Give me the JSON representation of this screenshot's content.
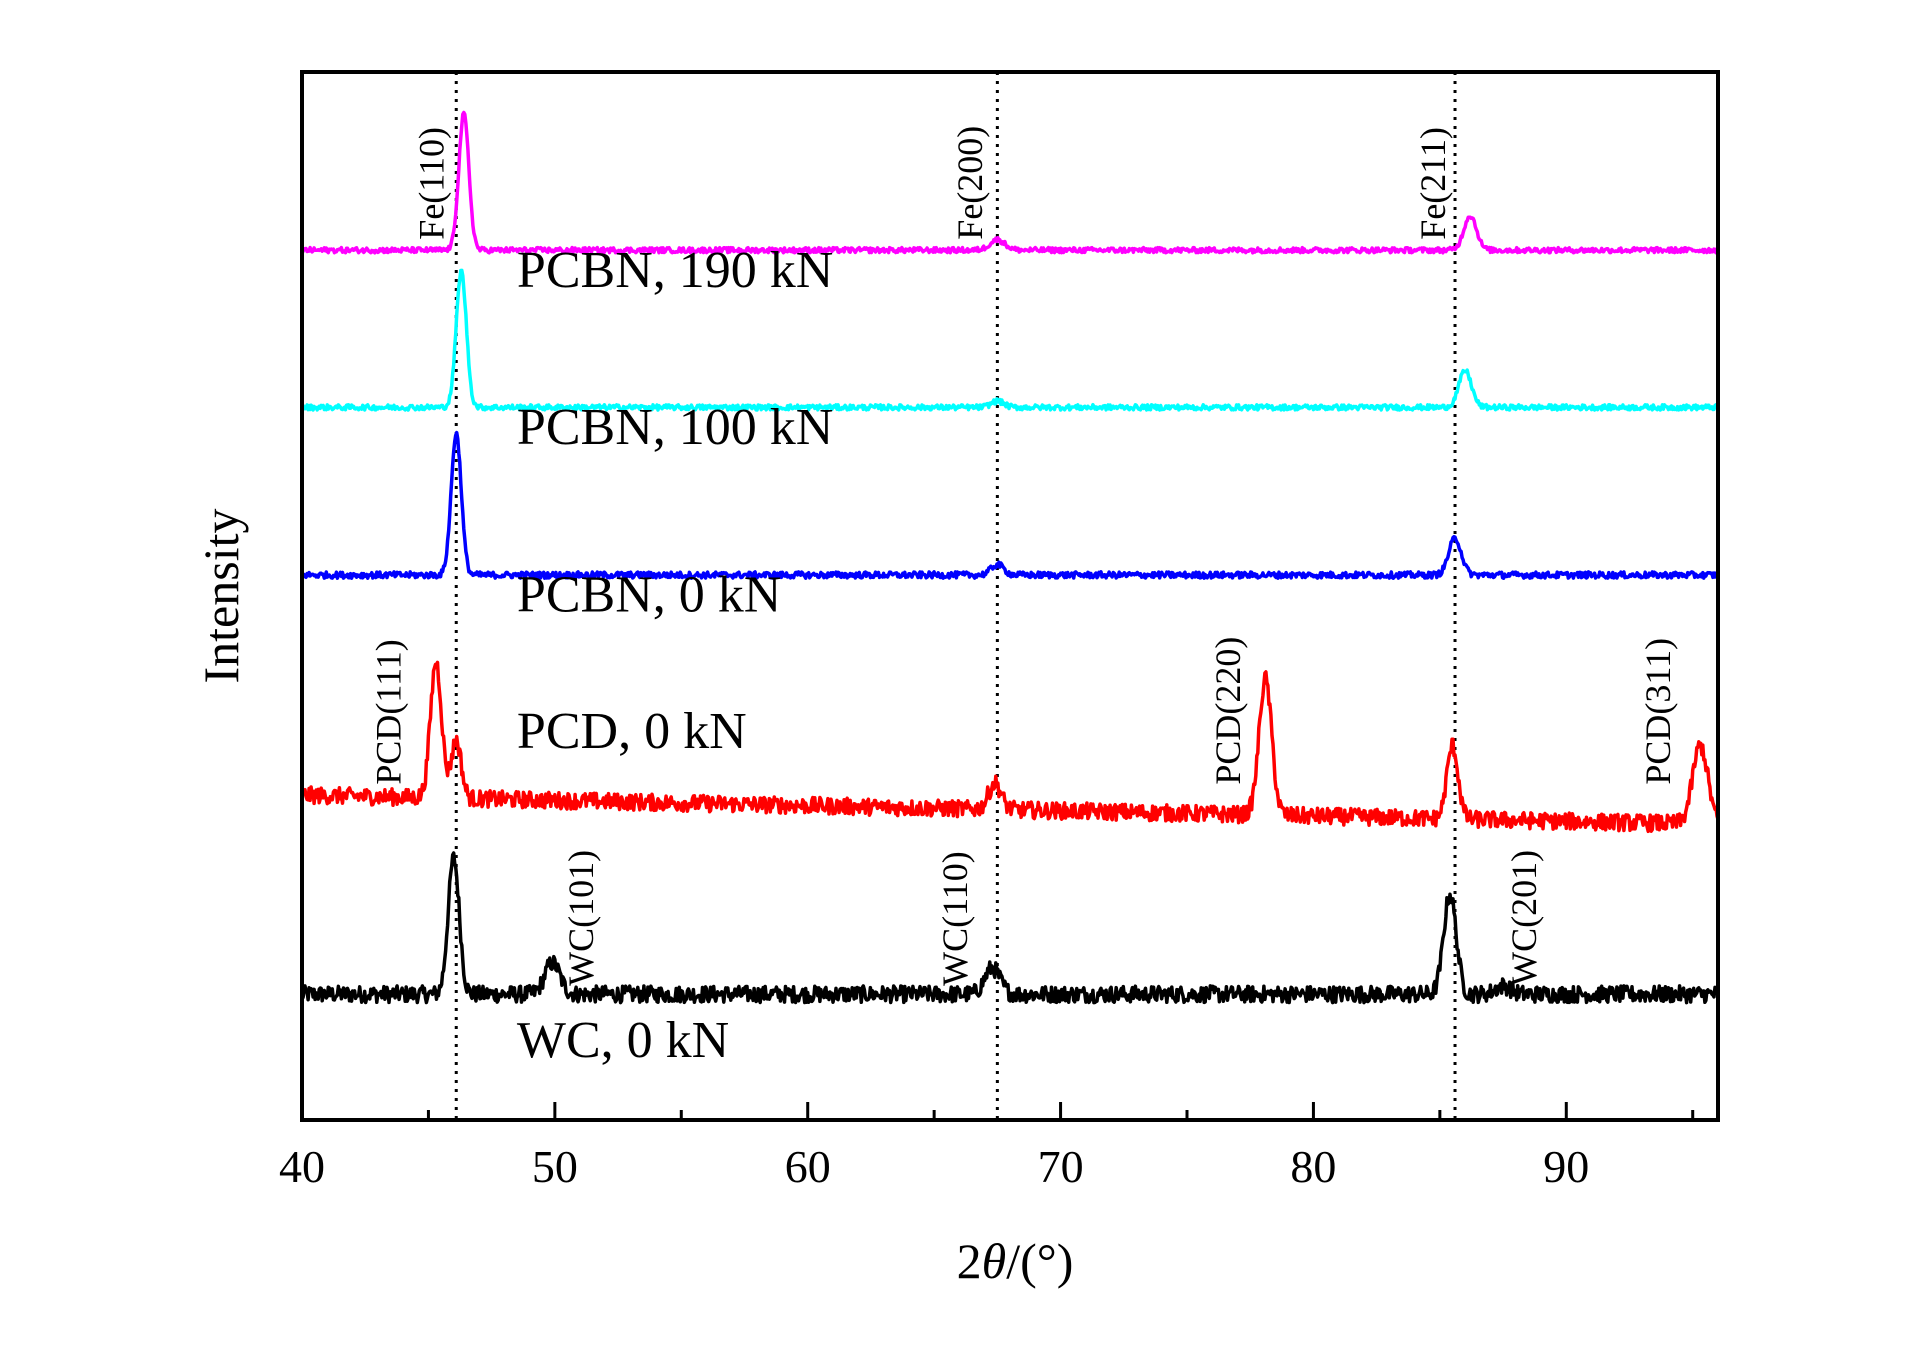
{
  "chart_data": {
    "type": "line",
    "xlabel_prefix": "2",
    "xlabel_theta": "θ",
    "xlabel_suffix": "/(°)",
    "ylabel": "Intensity",
    "xlim": [
      40,
      96
    ],
    "xticks": [
      40,
      50,
      60,
      70,
      80,
      90
    ],
    "xtick_labels": [
      "40",
      "50",
      "60",
      "70",
      "80",
      "90"
    ],
    "reference_lines": [
      46.1,
      67.5,
      85.6
    ],
    "series": [
      {
        "name": "WC, 0 kN",
        "color": "#000000",
        "baseline": 0.12,
        "noise": 0.008,
        "peaks": [
          {
            "x": 46.0,
            "h": 0.13,
            "w": 0.22
          },
          {
            "x": 49.9,
            "h": 0.03,
            "w": 0.3
          },
          {
            "x": 67.3,
            "h": 0.025,
            "w": 0.3
          },
          {
            "x": 85.4,
            "h": 0.095,
            "w": 0.25
          },
          {
            "x": 87.5,
            "h": 0.008,
            "w": 0.3
          }
        ]
      },
      {
        "name": "PCD, 0 kN",
        "color": "#ff0000",
        "baseline": 0.31,
        "noise": 0.008,
        "slope": -0.0005,
        "peaks": [
          {
            "x": 45.3,
            "h": 0.13,
            "w": 0.22
          },
          {
            "x": 46.1,
            "h": 0.055,
            "w": 0.2
          },
          {
            "x": 67.4,
            "h": 0.025,
            "w": 0.25
          },
          {
            "x": 78.1,
            "h": 0.13,
            "w": 0.25
          },
          {
            "x": 85.5,
            "h": 0.07,
            "w": 0.22
          },
          {
            "x": 95.3,
            "h": 0.075,
            "w": 0.3
          }
        ]
      },
      {
        "name": "PCBN, 0 kN",
        "color": "#0000ff",
        "baseline": 0.52,
        "noise": 0.003,
        "peaks": [
          {
            "x": 46.1,
            "h": 0.135,
            "w": 0.2
          },
          {
            "x": 67.5,
            "h": 0.01,
            "w": 0.25
          },
          {
            "x": 85.6,
            "h": 0.035,
            "w": 0.25
          }
        ]
      },
      {
        "name": "PCBN, 100 kN",
        "color": "#00ffff",
        "baseline": 0.68,
        "noise": 0.0025,
        "peaks": [
          {
            "x": 46.3,
            "h": 0.13,
            "w": 0.2
          },
          {
            "x": 67.5,
            "h": 0.006,
            "w": 0.25
          },
          {
            "x": 86.0,
            "h": 0.035,
            "w": 0.25
          }
        ]
      },
      {
        "name": "PCBN, 190 kN",
        "color": "#ff00ff",
        "baseline": 0.83,
        "noise": 0.0025,
        "peaks": [
          {
            "x": 46.4,
            "h": 0.13,
            "w": 0.2
          },
          {
            "x": 67.5,
            "h": 0.01,
            "w": 0.3
          },
          {
            "x": 86.2,
            "h": 0.033,
            "w": 0.25
          }
        ]
      }
    ],
    "peak_labels": [
      {
        "text": "Fe(110)",
        "x": 45.6,
        "y": 0.84
      },
      {
        "text": "Fe(200)",
        "x": 66.9,
        "y": 0.84
      },
      {
        "text": "Fe(211)",
        "x": 85.2,
        "y": 0.84
      },
      {
        "text": "PCD(111)",
        "x": 43.9,
        "y": 0.32
      },
      {
        "text": "PCD(220)",
        "x": 77.1,
        "y": 0.32
      },
      {
        "text": "PCD(311)",
        "x": 94.1,
        "y": 0.32
      },
      {
        "text": "WC(101)",
        "x": 51.5,
        "y": 0.128
      },
      {
        "text": "WC(110)",
        "x": 66.3,
        "y": 0.128
      },
      {
        "text": "WC(201)",
        "x": 88.8,
        "y": 0.128
      }
    ],
    "series_label_positions": [
      {
        "x": 48.5,
        "y": 0.06
      },
      {
        "x": 48.5,
        "y": 0.355
      },
      {
        "x": 48.5,
        "y": 0.485
      },
      {
        "x": 48.5,
        "y": 0.645
      },
      {
        "x": 48.5,
        "y": 0.795
      }
    ],
    "grid": false
  }
}
